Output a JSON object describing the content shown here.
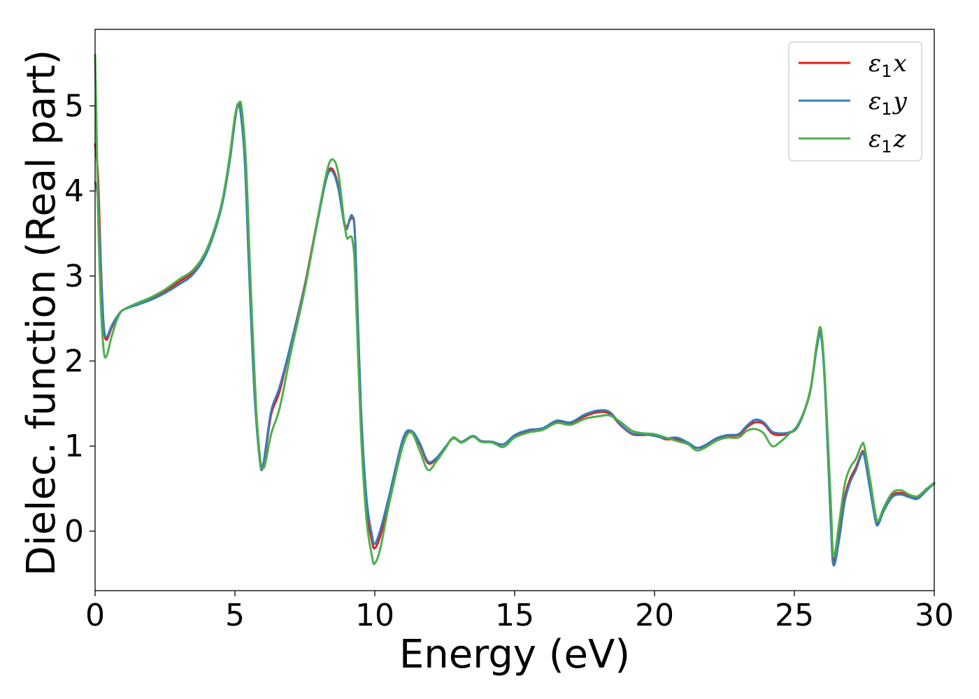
{
  "chart_data": {
    "type": "line",
    "title": "",
    "xlabel": "Energy (eV)",
    "ylabel": "Dielec. function (Real part)",
    "xlim": [
      0,
      30
    ],
    "ylim": [
      -0.7,
      5.9
    ],
    "xticks": [
      0,
      5,
      10,
      15,
      20,
      25,
      30
    ],
    "yticks": [
      0,
      1,
      2,
      3,
      4,
      5
    ],
    "grid": false,
    "legend_position": "top-right",
    "series": [
      {
        "name": "ε1x",
        "legend": {
          "symbol": "ε",
          "sub": "1",
          "axis": "x"
        },
        "color": "#e41a1c",
        "x": [
          0,
          0.1,
          0.2,
          0.3,
          0.4,
          0.6,
          0.8,
          1.0,
          1.5,
          2.0,
          2.5,
          3.0,
          3.5,
          4.0,
          4.5,
          4.8,
          5.0,
          5.1,
          5.2,
          5.35,
          5.5,
          5.7,
          5.9,
          6.0,
          6.1,
          6.3,
          6.6,
          7.0,
          7.5,
          8.0,
          8.3,
          8.5,
          8.7,
          8.9,
          9.0,
          9.1,
          9.2,
          9.3,
          9.5,
          9.7,
          9.9,
          10.0,
          10.2,
          10.5,
          11.0,
          11.3,
          11.6,
          11.9,
          12.2,
          12.5,
          12.8,
          13.1,
          13.5,
          13.8,
          14.2,
          14.6,
          15.0,
          15.5,
          16.0,
          16.5,
          17.0,
          17.5,
          18.0,
          18.4,
          18.8,
          19.2,
          19.6,
          20.0,
          20.4,
          20.8,
          21.2,
          21.5,
          21.8,
          22.2,
          22.6,
          23.0,
          23.3,
          23.6,
          23.9,
          24.2,
          24.5,
          24.8,
          25.1,
          25.4,
          25.6,
          25.8,
          25.95,
          26.1,
          26.3,
          26.4,
          26.6,
          26.8,
          27.0,
          27.2,
          27.4,
          27.5,
          27.7,
          27.9,
          28.0,
          28.2,
          28.5,
          28.8,
          29.1,
          29.4,
          29.7,
          30.0
        ],
        "y": [
          4.55,
          4.2,
          3.2,
          2.45,
          2.25,
          2.4,
          2.52,
          2.6,
          2.67,
          2.74,
          2.82,
          2.93,
          3.05,
          3.3,
          3.8,
          4.35,
          4.85,
          5.02,
          4.95,
          4.4,
          3.2,
          1.7,
          0.85,
          0.78,
          0.95,
          1.38,
          1.65,
          2.2,
          2.9,
          3.75,
          4.2,
          4.25,
          4.05,
          3.65,
          3.58,
          3.65,
          3.68,
          3.4,
          1.4,
          0.3,
          -0.12,
          -0.2,
          -0.05,
          0.35,
          1.05,
          1.17,
          1.02,
          0.8,
          0.85,
          0.97,
          1.1,
          1.05,
          1.12,
          1.06,
          1.05,
          1.02,
          1.12,
          1.18,
          1.2,
          1.28,
          1.27,
          1.35,
          1.4,
          1.38,
          1.24,
          1.14,
          1.13,
          1.13,
          1.08,
          1.08,
          1.03,
          0.98,
          1.0,
          1.08,
          1.12,
          1.13,
          1.22,
          1.28,
          1.26,
          1.15,
          1.13,
          1.15,
          1.22,
          1.45,
          1.7,
          2.2,
          2.35,
          1.7,
          0.2,
          -0.35,
          -0.05,
          0.4,
          0.62,
          0.75,
          0.92,
          0.9,
          0.55,
          0.15,
          0.1,
          0.25,
          0.42,
          0.45,
          0.42,
          0.4,
          0.48,
          0.56
        ]
      },
      {
        "name": "ε1y",
        "legend": {
          "symbol": "ε",
          "sub": "1",
          "axis": "y"
        },
        "color": "#377eb8",
        "x": [
          0,
          0.1,
          0.2,
          0.3,
          0.4,
          0.6,
          0.8,
          1.0,
          1.5,
          2.0,
          2.5,
          3.0,
          3.5,
          4.0,
          4.5,
          4.8,
          5.0,
          5.1,
          5.2,
          5.35,
          5.5,
          5.7,
          5.9,
          6.0,
          6.1,
          6.3,
          6.6,
          7.0,
          7.5,
          8.0,
          8.3,
          8.5,
          8.7,
          8.9,
          9.0,
          9.1,
          9.2,
          9.3,
          9.5,
          9.7,
          9.9,
          10.0,
          10.2,
          10.5,
          11.0,
          11.3,
          11.6,
          11.9,
          12.2,
          12.5,
          12.8,
          13.1,
          13.5,
          13.8,
          14.2,
          14.6,
          15.0,
          15.5,
          16.0,
          16.5,
          17.0,
          17.5,
          18.0,
          18.4,
          18.8,
          19.2,
          19.6,
          20.0,
          20.4,
          20.8,
          21.2,
          21.5,
          21.8,
          22.2,
          22.6,
          23.0,
          23.3,
          23.6,
          23.9,
          24.2,
          24.5,
          24.8,
          25.1,
          25.4,
          25.6,
          25.8,
          25.95,
          26.1,
          26.3,
          26.4,
          26.6,
          26.8,
          27.0,
          27.2,
          27.4,
          27.5,
          27.7,
          27.9,
          28.0,
          28.2,
          28.5,
          28.8,
          29.1,
          29.4,
          29.7,
          30.0
        ],
        "y": [
          4.1,
          3.9,
          3.1,
          2.45,
          2.28,
          2.42,
          2.53,
          2.6,
          2.66,
          2.72,
          2.8,
          2.9,
          3.02,
          3.28,
          3.78,
          4.32,
          4.82,
          5.0,
          4.92,
          4.35,
          3.1,
          1.6,
          0.8,
          0.76,
          0.98,
          1.42,
          1.7,
          2.2,
          2.88,
          3.72,
          4.18,
          4.22,
          4.02,
          3.62,
          3.55,
          3.67,
          3.7,
          3.42,
          1.5,
          0.4,
          -0.05,
          -0.15,
          0.02,
          0.4,
          1.08,
          1.18,
          1.04,
          0.82,
          0.86,
          0.98,
          1.09,
          1.05,
          1.12,
          1.06,
          1.05,
          1.02,
          1.13,
          1.19,
          1.21,
          1.3,
          1.28,
          1.37,
          1.42,
          1.4,
          1.25,
          1.15,
          1.14,
          1.12,
          1.09,
          1.1,
          1.04,
          0.98,
          1.01,
          1.09,
          1.13,
          1.14,
          1.24,
          1.31,
          1.28,
          1.17,
          1.15,
          1.16,
          1.22,
          1.45,
          1.7,
          2.15,
          2.3,
          1.65,
          0.1,
          -0.4,
          -0.1,
          0.35,
          0.58,
          0.72,
          0.9,
          0.88,
          0.5,
          0.12,
          0.08,
          0.24,
          0.4,
          0.43,
          0.4,
          0.38,
          0.47,
          0.56
        ]
      },
      {
        "name": "ε1z",
        "legend": {
          "symbol": "ε",
          "sub": "1",
          "axis": "z"
        },
        "color": "#4daf4a",
        "x": [
          0,
          0.05,
          0.1,
          0.2,
          0.3,
          0.4,
          0.6,
          0.8,
          1.0,
          1.5,
          2.0,
          2.5,
          3.0,
          3.5,
          4.0,
          4.5,
          4.8,
          5.0,
          5.15,
          5.25,
          5.4,
          5.55,
          5.75,
          5.9,
          6.0,
          6.1,
          6.3,
          6.6,
          7.0,
          7.5,
          8.0,
          8.3,
          8.5,
          8.7,
          8.9,
          9.0,
          9.1,
          9.2,
          9.3,
          9.5,
          9.7,
          9.9,
          10.0,
          10.2,
          10.5,
          11.0,
          11.3,
          11.6,
          11.9,
          12.2,
          12.5,
          12.8,
          13.1,
          13.5,
          13.8,
          14.2,
          14.6,
          15.0,
          15.5,
          16.0,
          16.5,
          17.0,
          17.5,
          18.0,
          18.4,
          18.8,
          19.2,
          19.6,
          20.0,
          20.4,
          20.8,
          21.2,
          21.5,
          21.8,
          22.2,
          22.6,
          23.0,
          23.3,
          23.6,
          23.9,
          24.2,
          24.5,
          24.8,
          25.1,
          25.4,
          25.6,
          25.8,
          25.95,
          26.1,
          26.3,
          26.4,
          26.6,
          26.8,
          27.0,
          27.2,
          27.4,
          27.5,
          27.7,
          27.9,
          28.0,
          28.2,
          28.5,
          28.8,
          29.1,
          29.4,
          29.7,
          30.0
        ],
        "y": [
          5.6,
          4.8,
          3.8,
          2.7,
          2.15,
          2.05,
          2.3,
          2.5,
          2.6,
          2.68,
          2.75,
          2.84,
          2.96,
          3.07,
          3.32,
          3.82,
          4.38,
          4.88,
          5.04,
          4.95,
          4.3,
          3.0,
          1.5,
          0.85,
          0.74,
          0.82,
          1.15,
          1.45,
          2.1,
          2.85,
          3.75,
          4.25,
          4.37,
          4.2,
          3.65,
          3.45,
          3.46,
          3.42,
          3.0,
          1.2,
          0.15,
          -0.3,
          -0.38,
          -0.2,
          0.3,
          1.0,
          1.16,
          0.95,
          0.72,
          0.82,
          0.96,
          1.1,
          1.04,
          1.11,
          1.05,
          1.04,
          0.99,
          1.1,
          1.16,
          1.19,
          1.27,
          1.25,
          1.32,
          1.35,
          1.36,
          1.28,
          1.18,
          1.15,
          1.14,
          1.1,
          1.06,
          1.02,
          0.95,
          0.98,
          1.06,
          1.1,
          1.1,
          1.18,
          1.2,
          1.15,
          1.0,
          1.05,
          1.14,
          1.24,
          1.46,
          1.72,
          2.2,
          2.38,
          1.75,
          0.35,
          -0.3,
          0.1,
          0.55,
          0.75,
          0.85,
          1.01,
          1.0,
          0.62,
          0.2,
          0.12,
          0.28,
          0.45,
          0.48,
          0.43,
          0.41,
          0.49,
          0.57
        ]
      }
    ]
  }
}
